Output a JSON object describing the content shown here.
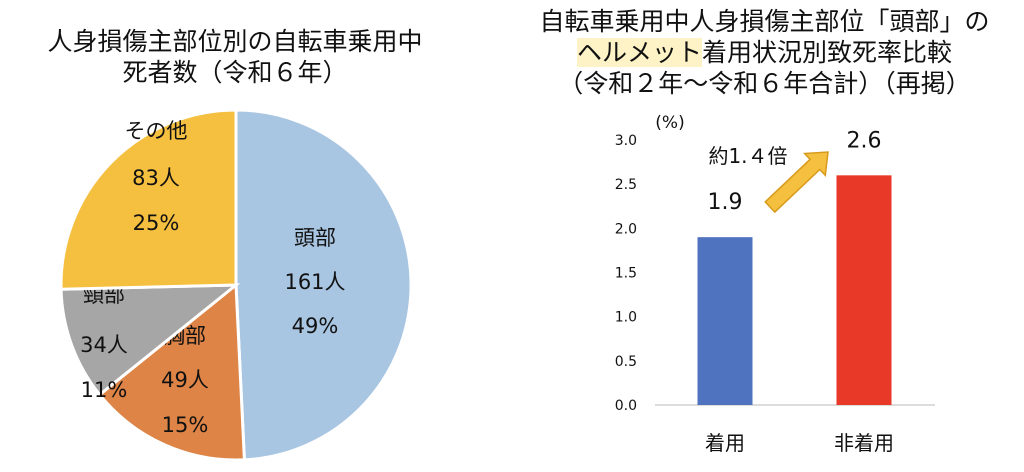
{
  "pie_title": [
    "人身損傷主部位別の自転車乗用中",
    "死者数（令和６年）"
  ],
  "bar_title": {
    "line1": "自転車乗用中人身損傷主部位「頭部」の",
    "line2_highlight": "ヘルメット",
    "line2_rest": "着用状況別致死率比較",
    "line3": "（令和２年～令和６年合計）（再掲）"
  },
  "chart_data": [
    {
      "type": "pie",
      "slices": [
        {
          "label": "頭部",
          "count": "161人",
          "percent": "49%",
          "value": 161,
          "color": "#a8c5e2"
        },
        {
          "label": "胸部",
          "count": "49人",
          "percent": "15%",
          "value": 49,
          "color": "#dd8446"
        },
        {
          "label": "頸部",
          "count": "34人",
          "percent": "11%",
          "value": 34,
          "color": "#a6a6a6"
        },
        {
          "label": "その他",
          "count": "83人",
          "percent": "25%",
          "value": 83,
          "color": "#f5bf3f"
        }
      ]
    },
    {
      "type": "bar",
      "ylabel": "(%)",
      "ylim": [
        0,
        3.0
      ],
      "yticks": [
        "0.0",
        "0.5",
        "1.0",
        "1.5",
        "2.0",
        "2.5",
        "3.0"
      ],
      "categories": [
        "着用",
        "非着用"
      ],
      "values": [
        1.9,
        2.6
      ],
      "value_labels": [
        "1.9",
        "2.6"
      ],
      "colors": [
        "#4f73be",
        "#e83828"
      ],
      "annotation": "約1.４倍",
      "annotation_color": "#e83828",
      "arrow_color": "#f5bf3f"
    }
  ]
}
